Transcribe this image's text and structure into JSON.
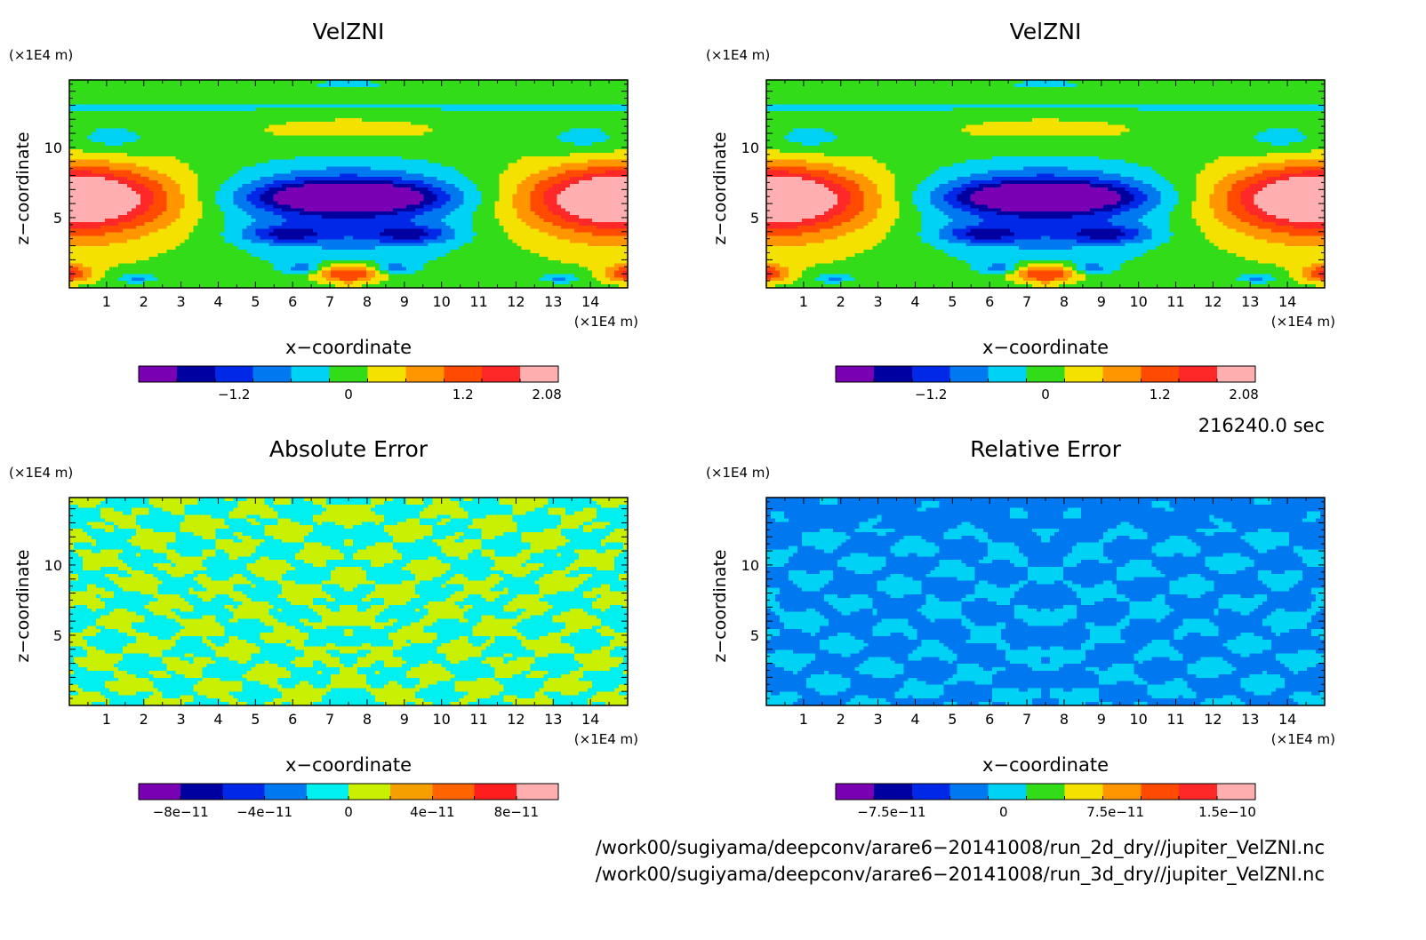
{
  "chart_data": [
    {
      "type": "heatmap",
      "title": "VelZNI",
      "xlabel": "x−coordinate",
      "ylabel": "z−coordinate",
      "x_unit": "(×1E4 m)",
      "y_unit": "(×1E4 m)",
      "xlim": [
        0,
        15
      ],
      "ylim": [
        0,
        14.8
      ],
      "x_ticks": [
        "1",
        "2",
        "3",
        "4",
        "5",
        "6",
        "7",
        "8",
        "9",
        "10",
        "11",
        "12",
        "13",
        "14"
      ],
      "y_ticks": [
        "5",
        "10"
      ],
      "colorbar": {
        "colors": [
          "#7a00b4",
          "#0000a0",
          "#0028e6",
          "#0078f0",
          "#00d2f5",
          "#32dc19",
          "#f5e100",
          "#ff9600",
          "#ff4b00",
          "#ff2828",
          "#ffafaf"
        ],
        "tick_labels": [
          "−1.2",
          "0",
          "1.2",
          "2.08"
        ],
        "tick_values": [
          -1.2,
          0,
          1.2,
          2.08
        ],
        "range": [
          -2.2,
          2.2
        ]
      },
      "field": "velzni"
    },
    {
      "type": "heatmap",
      "title": "VelZNI",
      "xlabel": "x−coordinate",
      "ylabel": "z−coordinate",
      "x_unit": "(×1E4 m)",
      "y_unit": "(×1E4 m)",
      "xlim": [
        0,
        15
      ],
      "ylim": [
        0,
        14.8
      ],
      "x_ticks": [
        "1",
        "2",
        "3",
        "4",
        "5",
        "6",
        "7",
        "8",
        "9",
        "10",
        "11",
        "12",
        "13",
        "14"
      ],
      "y_ticks": [
        "5",
        "10"
      ],
      "colorbar": {
        "colors": [
          "#7a00b4",
          "#0000a0",
          "#0028e6",
          "#0078f0",
          "#00d2f5",
          "#32dc19",
          "#f5e100",
          "#ff9600",
          "#ff4b00",
          "#ff2828",
          "#ffafaf"
        ],
        "tick_labels": [
          "−1.2",
          "0",
          "1.2",
          "2.08"
        ],
        "tick_values": [
          -1.2,
          0,
          1.2,
          2.08
        ],
        "range": [
          -2.2,
          2.2
        ]
      },
      "field": "velzni"
    },
    {
      "type": "heatmap",
      "title": "Absolute Error",
      "xlabel": "x−coordinate",
      "ylabel": "z−coordinate",
      "x_unit": "(×1E4 m)",
      "y_unit": "(×1E4 m)",
      "xlim": [
        0,
        15
      ],
      "ylim": [
        0,
        14.8
      ],
      "x_ticks": [
        "1",
        "2",
        "3",
        "4",
        "5",
        "6",
        "7",
        "8",
        "9",
        "10",
        "11",
        "12",
        "13",
        "14"
      ],
      "y_ticks": [
        "5",
        "10"
      ],
      "colorbar": {
        "colors": [
          "#7a00b4",
          "#0000a0",
          "#0028e6",
          "#0078f0",
          "#00f0f0",
          "#c8f000",
          "#f5a000",
          "#ff6400",
          "#ff1e1e",
          "#ffafaf"
        ],
        "tick_labels": [
          "−8e−11",
          "−4e−11",
          "0",
          "4e−11",
          "8e−11"
        ],
        "tick_values": [
          -8e-11,
          -4e-11,
          0,
          4e-11,
          8e-11
        ],
        "range": [
          -1e-10,
          1e-10
        ]
      },
      "field": "abs_error"
    },
    {
      "type": "heatmap",
      "title": "Relative Error",
      "xlabel": "x−coordinate",
      "ylabel": "z−coordinate",
      "x_unit": "(×1E4 m)",
      "y_unit": "(×1E4 m)",
      "xlim": [
        0,
        15
      ],
      "ylim": [
        0,
        14.8
      ],
      "x_ticks": [
        "1",
        "2",
        "3",
        "4",
        "5",
        "6",
        "7",
        "8",
        "9",
        "10",
        "11",
        "12",
        "13",
        "14"
      ],
      "y_ticks": [
        "5",
        "10"
      ],
      "colorbar": {
        "colors": [
          "#7a00b4",
          "#0000a0",
          "#0028e6",
          "#0078f0",
          "#00d2f5",
          "#32dc19",
          "#f5e100",
          "#ff9600",
          "#ff4b00",
          "#ff2828",
          "#ffafaf"
        ],
        "tick_labels": [
          "−7.5e−11",
          "0",
          "7.5e−11",
          "1.5e−10"
        ],
        "tick_values": [
          -7.5e-11,
          0,
          7.5e-11,
          1.5e-10
        ],
        "range": [
          -1.125e-10,
          1.6875e-10
        ]
      },
      "field": "rel_error"
    }
  ],
  "footer": {
    "time_label": "216240.0 sec",
    "path_line_1": "/work00/sugiyama/deepconv/arare6−20141008/run_2d_dry//jupiter_VelZNI.nc",
    "path_line_2": "/work00/sugiyama/deepconv/arare6−20141008/run_3d_dry//jupiter_VelZNI.nc"
  }
}
